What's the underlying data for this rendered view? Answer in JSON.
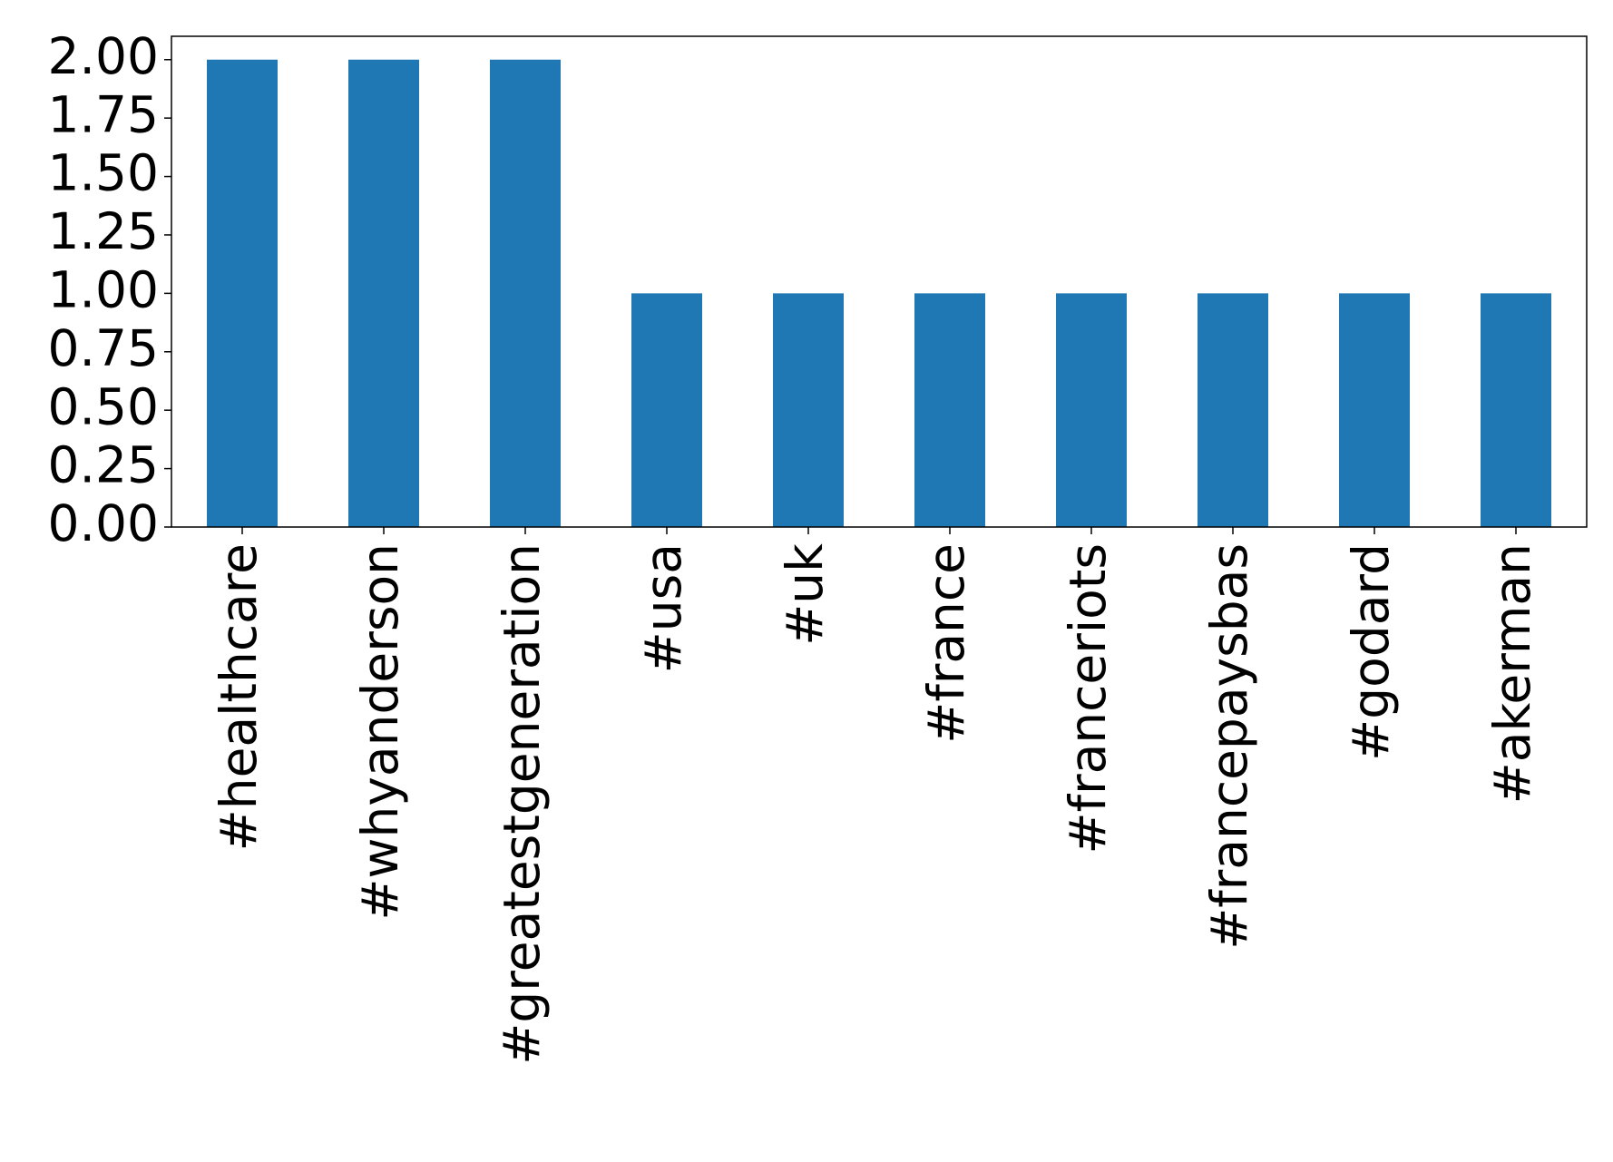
{
  "chart_data": {
    "type": "bar",
    "categories": [
      "#healthcare",
      "#whyanderson",
      "#greatestgeneration",
      "#usa",
      "#uk",
      "#france",
      "#franceriots",
      "#francepaysbas",
      "#godard",
      "#akerman"
    ],
    "values": [
      2,
      2,
      2,
      1,
      1,
      1,
      1,
      1,
      1,
      1
    ],
    "color": "#1f77b4",
    "ylim": [
      0,
      2.1
    ],
    "yticks": [
      {
        "value": 0,
        "label": "0.00"
      },
      {
        "value": 0.25,
        "label": "0.25"
      },
      {
        "value": 0.5,
        "label": "0.50"
      },
      {
        "value": 0.75,
        "label": "0.75"
      },
      {
        "value": 1,
        "label": "1.00"
      },
      {
        "value": 1.25,
        "label": "1.25"
      },
      {
        "value": 1.5,
        "label": "1.50"
      },
      {
        "value": 1.75,
        "label": "1.75"
      },
      {
        "value": 2,
        "label": "2.00"
      }
    ],
    "grid": false
  }
}
